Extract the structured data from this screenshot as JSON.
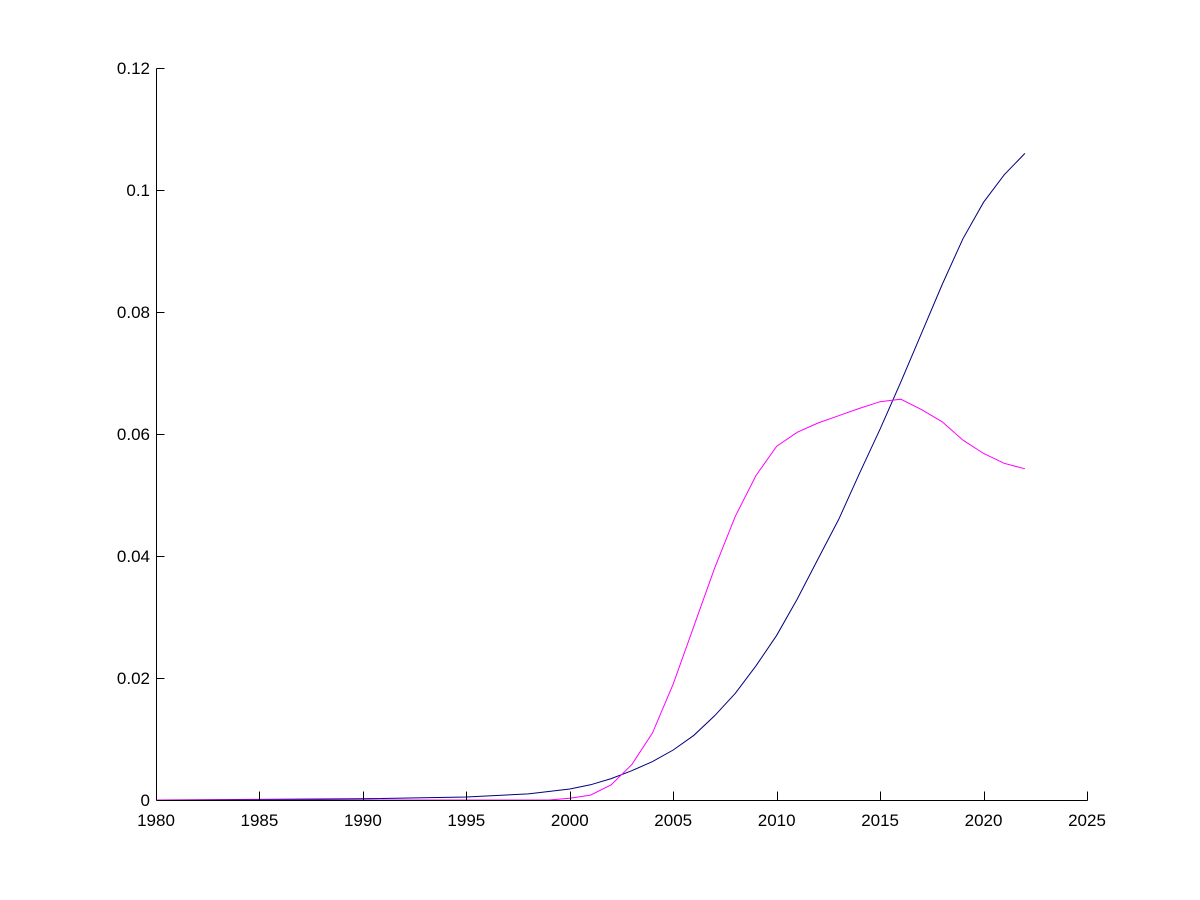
{
  "chart_data": {
    "type": "line",
    "title": "",
    "xlabel": "",
    "ylabel": "",
    "xlim": [
      1980,
      2025
    ],
    "ylim": [
      0,
      0.12
    ],
    "grid": false,
    "xticks": [
      1980,
      1985,
      1990,
      1995,
      2000,
      2005,
      2010,
      2015,
      2020,
      2025
    ],
    "yticks": [
      0,
      0.02,
      0.04,
      0.06,
      0.08,
      0.1,
      0.12
    ],
    "x_tick_labels": [
      "1980",
      "1985",
      "1990",
      "1995",
      "2000",
      "2005",
      "2010",
      "2015",
      "2020",
      "2025"
    ],
    "y_tick_labels": [
      "0",
      "0.02",
      "0.04",
      "0.06",
      "0.08",
      "0.1",
      "0.12"
    ],
    "series": [
      {
        "color": "#00007f",
        "x": [
          1980,
          1985,
          1990,
          1995,
          1998,
          2000,
          2001,
          2002,
          2003,
          2004,
          2005,
          2006,
          2007,
          2008,
          2009,
          2010,
          2011,
          2012,
          2013,
          2014,
          2015,
          2016,
          2017,
          2018,
          2019,
          2020,
          2021,
          2022
        ],
        "y": [
          0.0,
          0.0001,
          0.0002,
          0.0005,
          0.001,
          0.0018,
          0.0025,
          0.0035,
          0.0048,
          0.0063,
          0.0082,
          0.0106,
          0.0138,
          0.0175,
          0.022,
          0.027,
          0.033,
          0.0395,
          0.046,
          0.0535,
          0.0608,
          0.0685,
          0.0765,
          0.0845,
          0.092,
          0.098,
          0.1025,
          0.106
        ]
      },
      {
        "color": "#ff00ff",
        "x": [
          1980,
          1985,
          1990,
          1995,
          1999,
          2000,
          2001,
          2002,
          2003,
          2004,
          2005,
          2006,
          2007,
          2008,
          2009,
          2010,
          2011,
          2012,
          2013,
          2014,
          2015,
          2016,
          2017,
          2018,
          2019,
          2020,
          2021,
          2022
        ],
        "y": [
          0.0,
          0.0,
          0.0,
          0.0,
          0.0,
          0.0003,
          0.0008,
          0.0025,
          0.0058,
          0.011,
          0.019,
          0.0285,
          0.038,
          0.0465,
          0.0532,
          0.058,
          0.0603,
          0.0618,
          0.063,
          0.0642,
          0.0653,
          0.0657,
          0.064,
          0.062,
          0.059,
          0.0568,
          0.0552,
          0.0543
        ]
      }
    ]
  }
}
